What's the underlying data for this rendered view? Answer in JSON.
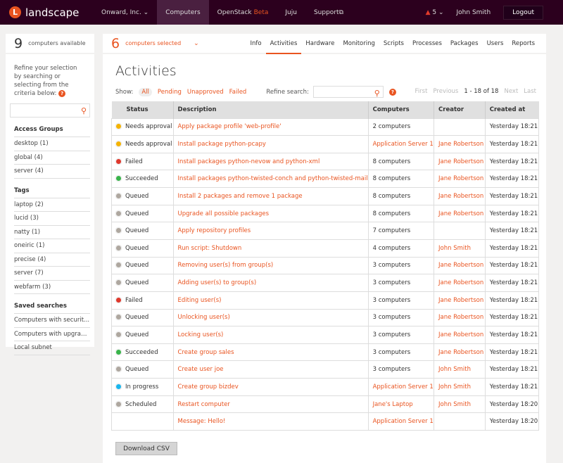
{
  "topbar": {
    "brand": "landscape",
    "org": "Onward, Inc.",
    "nav": [
      "Computers",
      "OpenStack",
      "Juju",
      "Support"
    ],
    "beta": "Beta",
    "alerts": "5",
    "user": "John Smith",
    "logout": "Logout"
  },
  "sidebar": {
    "count": "9",
    "count_label": "computers available",
    "refine": "Refine your selection by searching or selecting from the criteria below:",
    "sections": [
      {
        "title": "Access Groups",
        "items": [
          "desktop (1)",
          "global (4)",
          "server (4)"
        ]
      },
      {
        "title": "Tags",
        "items": [
          "laptop (2)",
          "lucid (3)",
          "natty (1)",
          "oneiric (1)",
          "precise (4)",
          "server (7)",
          "webfarm (3)"
        ]
      },
      {
        "title": "Saved searches",
        "items": [
          "Computers with securit...",
          "Computers with upgrades",
          "Local subnet"
        ]
      }
    ]
  },
  "main": {
    "count": "6",
    "count_label": "computers selected",
    "tabs": [
      "Info",
      "Activities",
      "Hardware",
      "Monitoring",
      "Scripts",
      "Processes",
      "Packages",
      "Users",
      "Reports"
    ],
    "active_tab": "Activities",
    "title": "Activities",
    "show_label": "Show:",
    "filters": [
      "All",
      "Pending",
      "Unapproved",
      "Failed"
    ],
    "refine_label": "Refine search:",
    "search_value": "",
    "pager": {
      "first": "First",
      "previous": "Previous",
      "range": "1 - 18 of 18",
      "next": "Next",
      "last": "Last"
    },
    "columns": [
      "Status",
      "Description",
      "Computers",
      "Creator",
      "Created at"
    ],
    "status_colors": {
      "Needs approval": "#f5b300",
      "Failed": "#df382c",
      "Succeeded": "#38b44a",
      "Queued": "#aea79f",
      "In progress": "#19b6ee",
      "Scheduled": "#aea79f"
    },
    "rows": [
      [
        "Needs approval",
        "Apply package profile 'web-profile'",
        "2 computers",
        "",
        "Yesterday 18:21"
      ],
      [
        "Needs approval",
        "Install package python-pcapy",
        "Application Server 1",
        "Jane Robertson",
        "Yesterday 18:21"
      ],
      [
        "Failed",
        "Install packages python-nevow and python-xml",
        "8 computers",
        "Jane Robertson",
        "Yesterday 18:21"
      ],
      [
        "Succeeded",
        "Install packages python-twisted-conch and python-twisted-mail",
        "8 computers",
        "Jane Robertson",
        "Yesterday 18:21"
      ],
      [
        "Queued",
        "Install 2 packages and remove 1 package",
        "8 computers",
        "Jane Robertson",
        "Yesterday 18:21"
      ],
      [
        "Queued",
        "Upgrade all possible packages",
        "8 computers",
        "Jane Robertson",
        "Yesterday 18:21"
      ],
      [
        "Queued",
        "Apply repository profiles",
        "7 computers",
        "",
        "Yesterday 18:21"
      ],
      [
        "Queued",
        "Run script: Shutdown",
        "4 computers",
        "John Smith",
        "Yesterday 18:21"
      ],
      [
        "Queued",
        "Removing user(s) from group(s)",
        "3 computers",
        "Jane Robertson",
        "Yesterday 18:21"
      ],
      [
        "Queued",
        "Adding user(s) to group(s)",
        "3 computers",
        "Jane Robertson",
        "Yesterday 18:21"
      ],
      [
        "Failed",
        "Editing user(s)",
        "3 computers",
        "Jane Robertson",
        "Yesterday 18:21"
      ],
      [
        "Queued",
        "Unlocking user(s)",
        "3 computers",
        "Jane Robertson",
        "Yesterday 18:21"
      ],
      [
        "Queued",
        "Locking user(s)",
        "3 computers",
        "Jane Robertson",
        "Yesterday 18:21"
      ],
      [
        "Succeeded",
        "Create group sales",
        "3 computers",
        "Jane Robertson",
        "Yesterday 18:21"
      ],
      [
        "Queued",
        "Create user joe",
        "3 computers",
        "John Smith",
        "Yesterday 18:21"
      ],
      [
        "In progress",
        "Create group bizdev",
        "Application Server 1",
        "John Smith",
        "Yesterday 18:21"
      ],
      [
        "Scheduled",
        "Restart computer",
        "Jane's Laptop",
        "John Smith",
        "Yesterday 18:20"
      ],
      [
        "",
        "Message: Hello!",
        "Application Server 1",
        "",
        "Yesterday 18:20"
      ]
    ],
    "download": "Download CSV"
  }
}
